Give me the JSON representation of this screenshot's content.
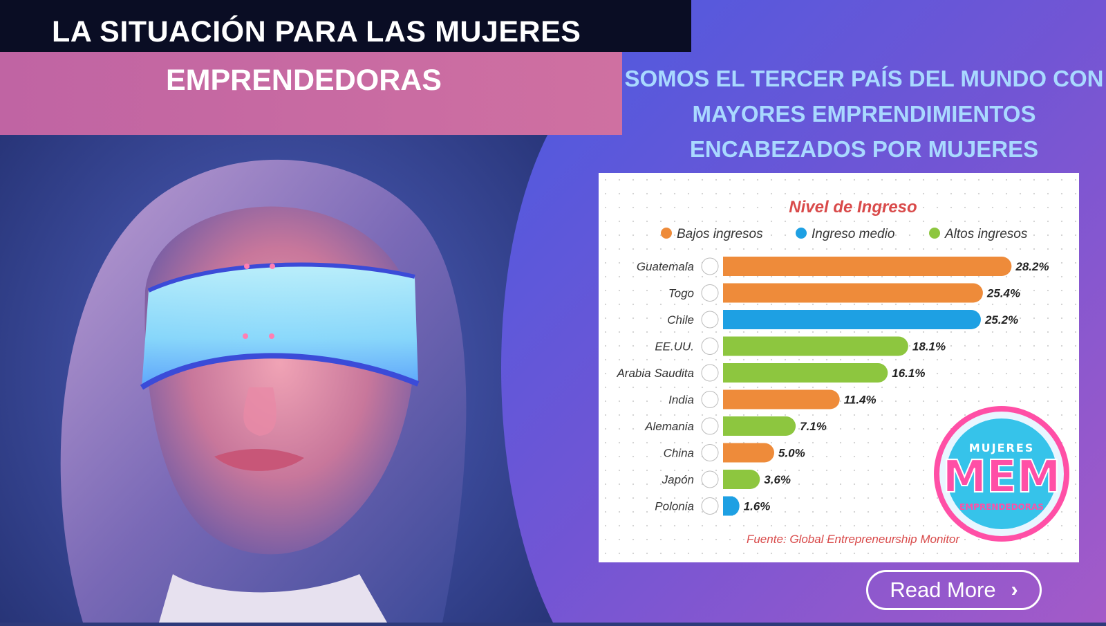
{
  "banner": {
    "title_line1": "LA SITUACIÓN PARA LAS MUJERES",
    "title_line2": "EMPRENDEDORAS"
  },
  "headline": {
    "line1": "SOMOS EL TERCER PAÍS DEL MUNDO CON",
    "line2": "MAYORES EMPRENDIMIENTOS",
    "line3": "ENCABEZADOS POR MUJERES"
  },
  "logo": {
    "top_text": "MUJERES",
    "big_text": "MEM",
    "bottom_text": "EMPRENDEDORAS"
  },
  "cta": {
    "label": "Read More",
    "icon": "chevron-right-icon"
  },
  "colors": {
    "bajos": "#ee8b3a",
    "medio": "#1ea0e3",
    "altos": "#8dc63f",
    "headline": "#a9d9ff",
    "title_red": "#d94a4a"
  },
  "chart_data": {
    "type": "bar",
    "orientation": "horizontal",
    "title": "Nivel de Ingreso",
    "legend": [
      {
        "name": "Bajos ingresos",
        "color": "#ee8b3a"
      },
      {
        "name": "Ingreso medio",
        "color": "#1ea0e3"
      },
      {
        "name": "Altos ingresos",
        "color": "#8dc63f"
      }
    ],
    "legend_position": "top",
    "categories": [
      "Guatemala",
      "Togo",
      "Chile",
      "EE.UU.",
      "Arabia Saudita",
      "India",
      "Alemania",
      "China",
      "Japón",
      "Polonia"
    ],
    "values": [
      28.2,
      25.4,
      25.2,
      18.1,
      16.1,
      11.4,
      7.1,
      5.0,
      3.6,
      1.6
    ],
    "value_labels": [
      "28.2%",
      "25.4%",
      "25.2%",
      "18.1%",
      "16.1%",
      "11.4%",
      "7.1%",
      "5.0%",
      "3.6%",
      "1.6%"
    ],
    "income_group": [
      "Bajos ingresos",
      "Bajos ingresos",
      "Ingreso medio",
      "Altos ingresos",
      "Altos ingresos",
      "Bajos ingresos",
      "Altos ingresos",
      "Bajos ingresos",
      "Altos ingresos",
      "Ingreso medio"
    ],
    "source": "Fuente: Global Entrepreneurship Monitor",
    "grid": false
  }
}
